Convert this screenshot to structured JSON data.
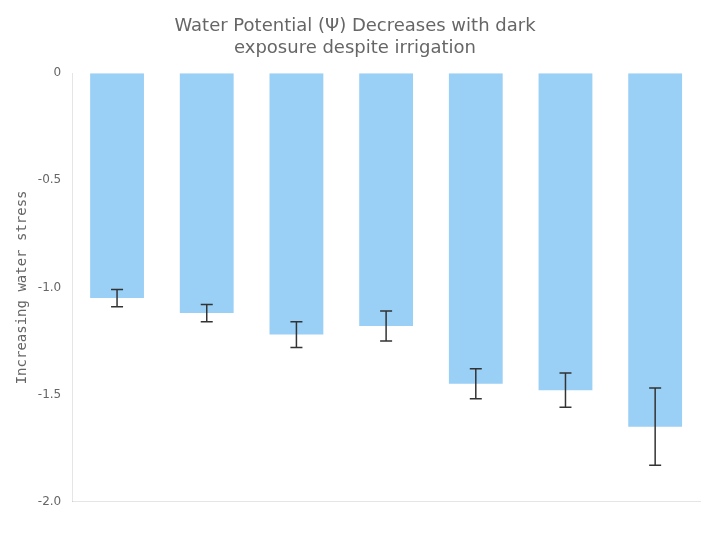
{
  "chart_data": {
    "type": "bar",
    "title": "Water Potential (Ψ) Decreases with dark\nexposure despite irrigation",
    "ylabel": "Increasing water stress",
    "categories": [
      null,
      null,
      null,
      null,
      null,
      null,
      null
    ],
    "values": [
      -1.05,
      -1.12,
      -1.22,
      -1.18,
      -1.45,
      -1.48,
      -1.65
    ],
    "errors": [
      0.04,
      0.04,
      0.06,
      0.07,
      0.07,
      0.08,
      0.18
    ],
    "ylim": [
      -2.0,
      0.0
    ],
    "yticks": [
      0,
      -0.5,
      {
        "value": -1.0,
        "label": "-1.0"
      },
      -1.5,
      {
        "value": -2.0,
        "label": "-2.0"
      }
    ],
    "grid": false
  }
}
